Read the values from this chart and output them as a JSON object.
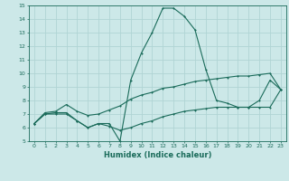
{
  "xlabel": "Humidex (Indice chaleur)",
  "xlim": [
    -0.5,
    23.5
  ],
  "ylim": [
    5,
    15
  ],
  "yticks": [
    5,
    6,
    7,
    8,
    9,
    10,
    11,
    12,
    13,
    14,
    15
  ],
  "xticks": [
    0,
    1,
    2,
    3,
    4,
    5,
    6,
    7,
    8,
    9,
    10,
    11,
    12,
    13,
    14,
    15,
    16,
    17,
    18,
    19,
    20,
    21,
    22,
    23
  ],
  "bg_color": "#cce8e8",
  "line_color": "#1a6b5a",
  "grid_color": "#b0d4d4",
  "series": {
    "main": [
      6.3,
      7.0,
      7.1,
      7.1,
      6.5,
      6.0,
      6.3,
      6.3,
      5.0,
      9.5,
      11.5,
      13.0,
      14.8,
      14.8,
      14.2,
      13.2,
      10.3,
      8.0,
      7.8,
      7.5,
      7.5,
      8.0,
      9.5,
      8.8
    ],
    "upper": [
      6.3,
      7.1,
      7.2,
      7.7,
      7.2,
      6.9,
      7.0,
      7.3,
      7.6,
      8.1,
      8.4,
      8.6,
      8.9,
      9.0,
      9.2,
      9.4,
      9.5,
      9.6,
      9.7,
      9.8,
      9.8,
      9.9,
      10.0,
      8.8
    ],
    "lower": [
      6.3,
      7.0,
      7.0,
      7.0,
      6.5,
      6.0,
      6.3,
      6.1,
      5.8,
      6.0,
      6.3,
      6.5,
      6.8,
      7.0,
      7.2,
      7.3,
      7.4,
      7.5,
      7.5,
      7.5,
      7.5,
      7.5,
      7.5,
      8.8
    ]
  }
}
